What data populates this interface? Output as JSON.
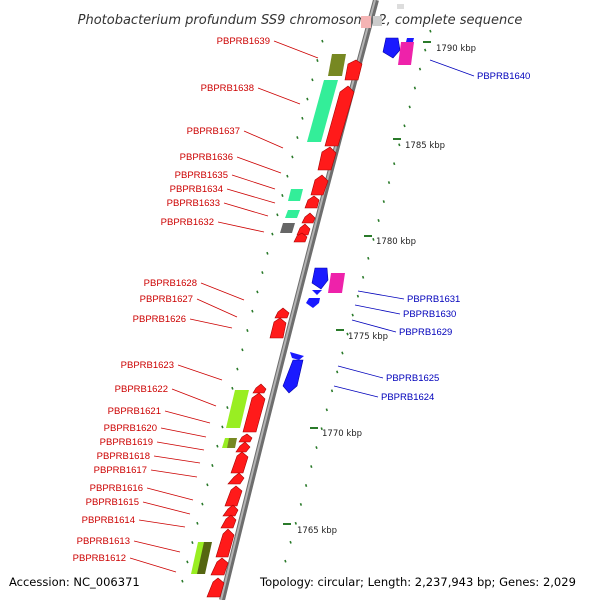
{
  "title": "Photobacterium profundum SS9 chromosome 2, complete sequence",
  "accession": "Accession: NC_006371",
  "topology": "Topology: circular; Length: 2,237,943 bp; Genes: 2,029",
  "colors": {
    "backbone": "#8c8c8c",
    "forward_gene": "#ff0000",
    "reverse_gene": "#0000ee",
    "forward_label": "#cc0000",
    "reverse_label": "#0000bb",
    "tick": "#2a7a2a",
    "feature_green": "#33ee99",
    "feature_olive": "#778822",
    "feature_lime": "#99ee22",
    "feature_magenta": "#ee22aa",
    "feature_grey": "#666666"
  },
  "scale_ticks": [
    {
      "label": "1790 kbp"
    },
    {
      "label": "1785 kbp"
    },
    {
      "label": "1780 kbp"
    },
    {
      "label": "1775 kbp"
    },
    {
      "label": "1770 kbp"
    },
    {
      "label": "1765 kbp"
    }
  ],
  "forward_labels": [
    "PBPRB1639",
    "PBPRB1638",
    "PBPRB1637",
    "PBPRB1636",
    "PBPRB1635",
    "PBPRB1634",
    "PBPRB1633",
    "PBPRB1632",
    "PBPRB1628",
    "PBPRB1627",
    "PBPRB1626",
    "PBPRB1623",
    "PBPRB1622",
    "PBPRB1621",
    "PBPRB1620",
    "PBPRB1619",
    "PBPRB1618",
    "PBPRB1617",
    "PBPRB1616",
    "PBPRB1615",
    "PBPRB1614",
    "PBPRB1613",
    "PBPRB1612"
  ],
  "reverse_labels": [
    "PBPRB1640",
    "PBPRB1631",
    "PBPRB1630",
    "PBPRB1629",
    "PBPRB1625",
    "PBPRB1624"
  ]
}
